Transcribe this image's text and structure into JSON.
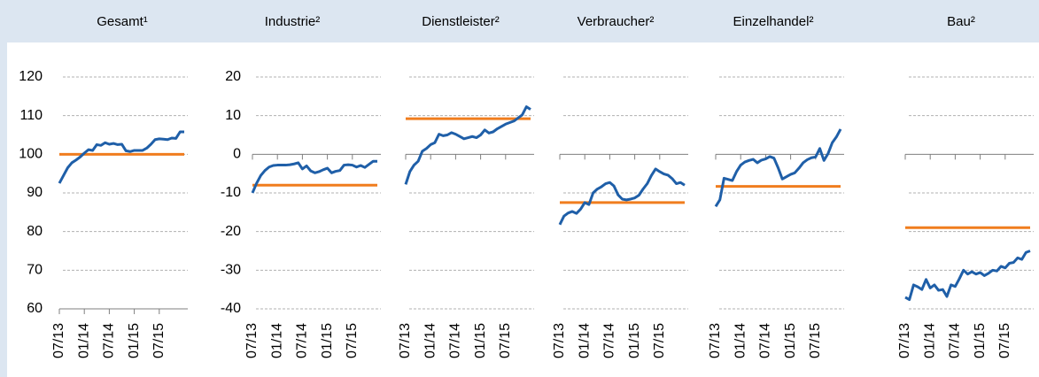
{
  "chart_data": [
    {
      "type": "line",
      "title": "Gesamt¹",
      "categories": [
        "07/13",
        null,
        null,
        null,
        null,
        null,
        "01/14",
        null,
        null,
        null,
        null,
        null,
        "07/14",
        null,
        null,
        null,
        null,
        null,
        "01/15",
        null,
        null,
        null,
        null,
        null,
        "07/15",
        null,
        null,
        null,
        null,
        null,
        null
      ],
      "series": [
        {
          "color": "#1f5fa8",
          "values": [
            92.5,
            94.5,
            96.5,
            97.8,
            98.5,
            99.3,
            100.3,
            101.2,
            101.0,
            102.5,
            102.3,
            103.0,
            102.6,
            102.8,
            102.5,
            102.6,
            100.9,
            100.7,
            101.0,
            101.0,
            101.0,
            101.6,
            102.6,
            103.8,
            104.0,
            103.9,
            103.8,
            104.2,
            104.1,
            105.8,
            105.8
          ]
        }
      ],
      "reference_line": {
        "value": 100,
        "color": "#f07d1e"
      },
      "ylim": [
        60,
        120
      ],
      "yticks": [
        60,
        70,
        80,
        90,
        100,
        110,
        120
      ],
      "ytick_labels": true,
      "xaxis_at": 60,
      "grid": true
    },
    {
      "type": "line",
      "title": "Industrie²",
      "categories": [
        "07/13",
        null,
        null,
        null,
        null,
        null,
        "01/14",
        null,
        null,
        null,
        null,
        null,
        "07/14",
        null,
        null,
        null,
        null,
        null,
        "01/15",
        null,
        null,
        null,
        null,
        null,
        "07/15",
        null,
        null,
        null,
        null,
        null,
        null
      ],
      "series": [
        {
          "color": "#1f5fa8",
          "values": [
            -10,
            -7.5,
            -5.5,
            -4.2,
            -3.3,
            -2.9,
            -2.8,
            -2.8,
            -2.8,
            -2.7,
            -2.5,
            -2.2,
            -3.8,
            -3.0,
            -4.3,
            -4.8,
            -4.5,
            -4.0,
            -3.6,
            -4.8,
            -4.4,
            -4.2,
            -2.8,
            -2.7,
            -2.8,
            -3.3,
            -2.9,
            -3.4,
            -2.6,
            -1.8,
            -1.8
          ]
        }
      ],
      "reference_line": {
        "value": -8,
        "color": "#f07d1e"
      },
      "ylim": [
        -40,
        20
      ],
      "yticks": [
        -40,
        -30,
        -20,
        -10,
        0,
        10,
        20
      ],
      "ytick_labels": true,
      "xaxis_at": 0,
      "grid": true
    },
    {
      "type": "line",
      "title": "Dienstleister²",
      "categories": [
        "07/13",
        null,
        null,
        null,
        null,
        null,
        "01/14",
        null,
        null,
        null,
        null,
        null,
        "07/14",
        null,
        null,
        null,
        null,
        null,
        "01/15",
        null,
        null,
        null,
        null,
        null,
        "07/15",
        null,
        null,
        null,
        null,
        null,
        null
      ],
      "series": [
        {
          "color": "#1f5fa8",
          "values": [
            -7.8,
            -4.5,
            -2.8,
            -1.8,
            0.8,
            1.5,
            2.5,
            3.0,
            5.2,
            4.8,
            5.0,
            5.6,
            5.2,
            4.6,
            4.0,
            4.3,
            4.6,
            4.3,
            5.0,
            6.3,
            5.5,
            5.8,
            6.6,
            7.2,
            7.8,
            8.2,
            8.6,
            9.4,
            10.2,
            12.3,
            11.6
          ]
        }
      ],
      "reference_line": {
        "value": 9.2,
        "color": "#f07d1e"
      },
      "ylim": [
        -40,
        20
      ],
      "yticks": [
        -40,
        -30,
        -20,
        -10,
        0,
        10,
        20
      ],
      "ytick_labels": false,
      "xaxis_at": 0,
      "grid": true
    },
    {
      "type": "line",
      "title": "Verbraucher²",
      "categories": [
        "07/13",
        null,
        null,
        null,
        null,
        null,
        "01/14",
        null,
        null,
        null,
        null,
        null,
        "07/14",
        null,
        null,
        null,
        null,
        null,
        "01/15",
        null,
        null,
        null,
        null,
        null,
        "07/15",
        null,
        null,
        null,
        null,
        null,
        null
      ],
      "series": [
        {
          "color": "#1f5fa8",
          "values": [
            -18.2,
            -16.0,
            -15.2,
            -14.8,
            -15.3,
            -14.2,
            -12.5,
            -13.0,
            -10.0,
            -9.0,
            -8.4,
            -7.6,
            -7.3,
            -8.2,
            -10.5,
            -11.6,
            -11.8,
            -11.6,
            -11.3,
            -10.6,
            -9.0,
            -7.6,
            -5.5,
            -3.8,
            -4.5,
            -5.1,
            -5.4,
            -6.3,
            -7.6,
            -7.3,
            -8.0
          ]
        }
      ],
      "reference_line": {
        "value": -12.5,
        "color": "#f07d1e"
      },
      "ylim": [
        -40,
        20
      ],
      "yticks": [
        -40,
        -30,
        -20,
        -10,
        0,
        10,
        20
      ],
      "ytick_labels": false,
      "xaxis_at": 0,
      "grid": true
    },
    {
      "type": "line",
      "title": "Einzelhandel²",
      "categories": [
        "07/13",
        null,
        null,
        null,
        null,
        null,
        "01/14",
        null,
        null,
        null,
        null,
        null,
        "07/14",
        null,
        null,
        null,
        null,
        null,
        "01/15",
        null,
        null,
        null,
        null,
        null,
        "07/15",
        null,
        null,
        null,
        null,
        null,
        null
      ],
      "series": [
        {
          "color": "#1f5fa8",
          "values": [
            -13.5,
            -11.8,
            -6.2,
            -6.5,
            -6.8,
            -4.5,
            -2.8,
            -2.0,
            -1.6,
            -1.3,
            -2.2,
            -1.5,
            -1.2,
            -0.6,
            -1.0,
            -3.5,
            -6.4,
            -5.8,
            -5.2,
            -4.8,
            -3.6,
            -2.2,
            -1.4,
            -0.9,
            -0.7,
            1.5,
            -1.6,
            0.2,
            3.0,
            4.5,
            6.5
          ]
        }
      ],
      "reference_line": {
        "value": -8.3,
        "color": "#f07d1e"
      },
      "ylim": [
        -40,
        20
      ],
      "yticks": [
        -40,
        -30,
        -20,
        -10,
        0,
        10,
        20
      ],
      "ytick_labels": false,
      "xaxis_at": 0,
      "grid": true
    },
    {
      "type": "line",
      "title": "Bau²",
      "categories": [
        "07/13",
        null,
        null,
        null,
        null,
        null,
        "01/14",
        null,
        null,
        null,
        null,
        null,
        "07/14",
        null,
        null,
        null,
        null,
        null,
        "01/15",
        null,
        null,
        null,
        null,
        null,
        "07/15",
        null,
        null,
        null,
        null,
        null,
        null
      ],
      "series": [
        {
          "color": "#1f5fa8",
          "values": [
            -37.0,
            -37.6,
            -33.8,
            -34.3,
            -35.0,
            -32.4,
            -34.6,
            -33.8,
            -35.2,
            -35.0,
            -36.8,
            -33.8,
            -34.2,
            -32.2,
            -30.0,
            -31.0,
            -30.4,
            -31.0,
            -30.6,
            -31.4,
            -30.8,
            -30.0,
            -30.2,
            -29.0,
            -29.4,
            -28.2,
            -28.0,
            -26.8,
            -27.2,
            -25.4,
            -25.0
          ]
        }
      ],
      "reference_line": {
        "value": -19,
        "color": "#f07d1e"
      },
      "ylim": [
        -40,
        20
      ],
      "yticks": [
        -40,
        -30,
        -20,
        -10,
        0,
        10,
        20
      ],
      "ytick_labels": false,
      "xaxis_at": 0,
      "grid": true
    }
  ]
}
